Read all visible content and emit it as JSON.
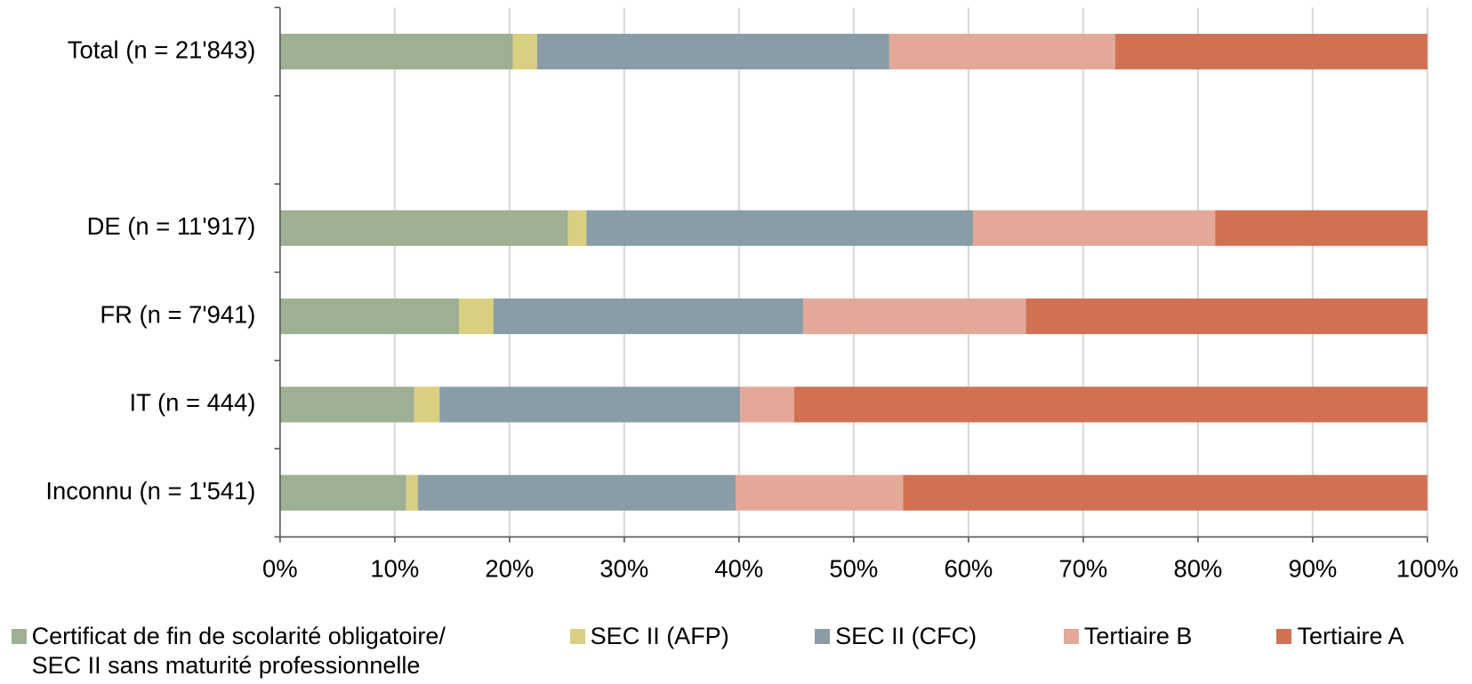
{
  "chart_data": {
    "type": "stacked_barh",
    "categories": [
      "Total (n = 21'843)",
      null,
      "DE (n = 11'917)",
      "FR (n = 7'941)",
      "IT (n = 444)",
      "Inconnu (n = 1'541)"
    ],
    "series": [
      {
        "name": "Certificat de fin de scolarité obligatoire/ SEC II sans maturité professionnelle",
        "color": "#9db094",
        "values": [
          20.3,
          null,
          25.1,
          15.6,
          11.7,
          11.0
        ]
      },
      {
        "name": "SEC II (AFP)",
        "color": "#d9cf80",
        "values": [
          2.1,
          null,
          1.6,
          3.0,
          2.2,
          1.0
        ]
      },
      {
        "name": "SEC II (CFC)",
        "color": "#8a9da6",
        "values": [
          30.7,
          null,
          33.7,
          27.0,
          26.2,
          27.7
        ]
      },
      {
        "name": "Tertiaire B",
        "color": "#e3a898",
        "values": [
          19.7,
          null,
          21.1,
          19.4,
          4.7,
          14.6
        ]
      },
      {
        "name": "Tertiaire A",
        "color": "#d07153",
        "values": [
          27.2,
          null,
          18.5,
          35.0,
          55.2,
          45.7
        ]
      }
    ],
    "xlim": [
      0,
      100
    ],
    "xticks": [
      {
        "value": 0,
        "label": "0%"
      },
      {
        "value": 10,
        "label": "10%"
      },
      {
        "value": 20,
        "label": "20%"
      },
      {
        "value": 30,
        "label": "30%"
      },
      {
        "value": 40,
        "label": "40%"
      },
      {
        "value": 50,
        "label": "50%"
      },
      {
        "value": 60,
        "label": "60%"
      },
      {
        "value": 70,
        "label": "70%"
      },
      {
        "value": 80,
        "label": "80%"
      },
      {
        "value": 90,
        "label": "90%"
      },
      {
        "value": 100,
        "label": "100%"
      }
    ],
    "grid": true,
    "legend": "bottom"
  }
}
